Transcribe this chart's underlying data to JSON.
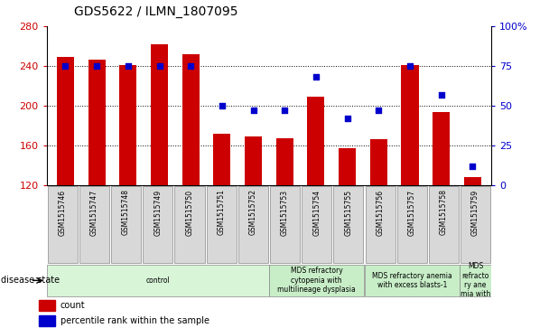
{
  "title": "GDS5622 / ILMN_1807095",
  "samples": [
    "GSM1515746",
    "GSM1515747",
    "GSM1515748",
    "GSM1515749",
    "GSM1515750",
    "GSM1515751",
    "GSM1515752",
    "GSM1515753",
    "GSM1515754",
    "GSM1515755",
    "GSM1515756",
    "GSM1515757",
    "GSM1515758",
    "GSM1515759"
  ],
  "counts": [
    249,
    246,
    241,
    262,
    252,
    172,
    169,
    167,
    209,
    157,
    166,
    241,
    194,
    128
  ],
  "percentile_ranks": [
    75,
    75,
    75,
    75,
    75,
    50,
    47,
    47,
    68,
    42,
    47,
    75,
    57,
    12
  ],
  "ylim": [
    120,
    280
  ],
  "y2lim": [
    0,
    100
  ],
  "bar_color": "#cc0000",
  "dot_color": "#0000cc",
  "tick_color_left": "#cc0000",
  "tick_color_right": "#0000cc",
  "disease_state_label": "disease state",
  "legend_count_label": "count",
  "legend_pct_label": "percentile rank within the sample",
  "group_positions": [
    {
      "start": 0,
      "end": 7,
      "label": "control",
      "color": "#d8f5d8"
    },
    {
      "start": 7,
      "end": 10,
      "label": "MDS refractory\ncytopenia with\nmultilineage dysplasia",
      "color": "#c8eec8"
    },
    {
      "start": 10,
      "end": 13,
      "label": "MDS refractory anemia\nwith excess blasts-1",
      "color": "#c8eec8"
    },
    {
      "start": 13,
      "end": 14,
      "label": "MDS\nrefracto\nry ane\nmia with",
      "color": "#c8eec8"
    }
  ]
}
